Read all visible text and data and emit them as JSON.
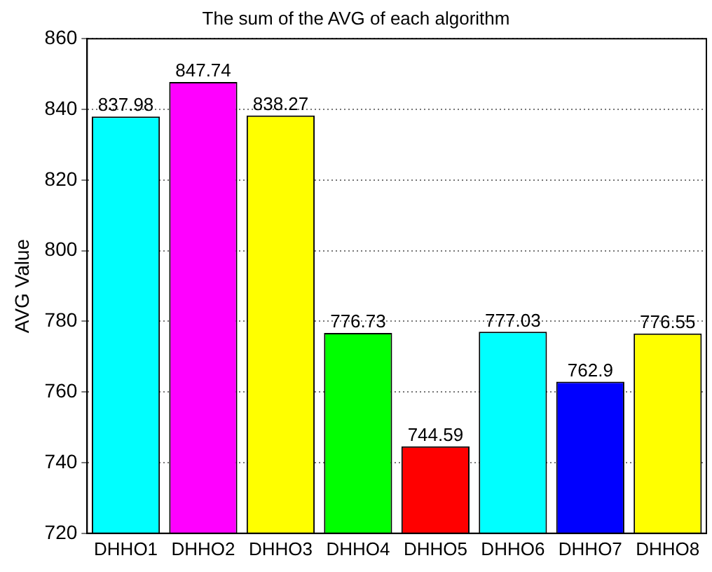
{
  "chart_data": {
    "type": "bar",
    "title": "The sum of the AVG of each algorithm",
    "ylabel": "AVG Value",
    "categories": [
      "DHHO1",
      "DHHO2",
      "DHHO3",
      "DHHO4",
      "DHHO5",
      "DHHO6",
      "DHHO7",
      "DHHO8"
    ],
    "values": [
      837.98,
      847.74,
      838.27,
      776.73,
      744.59,
      777.03,
      762.9,
      776.55
    ],
    "colors": [
      "#00ffff",
      "#ff00ff",
      "#ffff00",
      "#00ff00",
      "#ff0000",
      "#00ffff",
      "#0000ff",
      "#ffff00"
    ],
    "ylim": [
      720,
      860
    ],
    "yticks": [
      720,
      740,
      760,
      780,
      800,
      820,
      840,
      860
    ],
    "grid": "y",
    "data_labels": true
  }
}
